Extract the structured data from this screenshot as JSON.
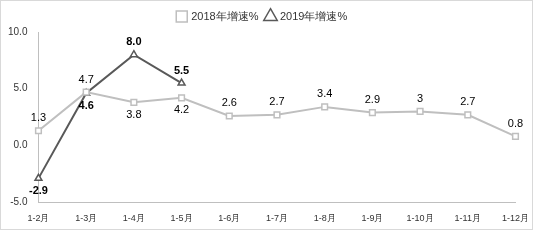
{
  "chart_data": {
    "type": "line",
    "categories": [
      "1-2月",
      "1-3月",
      "1-4月",
      "1-5月",
      "1-6月",
      "1-7月",
      "1-8月",
      "1-9月",
      "1-10月",
      "1-11月",
      "1-12月"
    ],
    "series": [
      {
        "name": "2019年增速%",
        "color": "#595959",
        "marker": "triangle",
        "values": [
          -2.9,
          4.6,
          8.0,
          5.5,
          null,
          null,
          null,
          null,
          null,
          null,
          null
        ],
        "value_labels": [
          "-2.9",
          "4.6",
          "8.0",
          "5.5",
          null,
          null,
          null,
          null,
          null,
          null,
          null
        ]
      },
      {
        "name": "2018年增速%",
        "color": "#bfbfbf",
        "marker": "square",
        "values": [
          1.3,
          4.7,
          3.8,
          4.2,
          2.6,
          2.7,
          3.4,
          2.9,
          3,
          2.7,
          0.8
        ]
      }
    ],
    "ylim": [
      -5,
      10
    ],
    "yticks": [
      {
        "value": -5,
        "label": "-5.0"
      },
      {
        "value": 0,
        "label": "0.0"
      },
      {
        "value": 5,
        "label": "5.0"
      },
      {
        "value": 10,
        "label": "10.0"
      }
    ],
    "grid": false,
    "legend": "top",
    "data_labels": true
  }
}
